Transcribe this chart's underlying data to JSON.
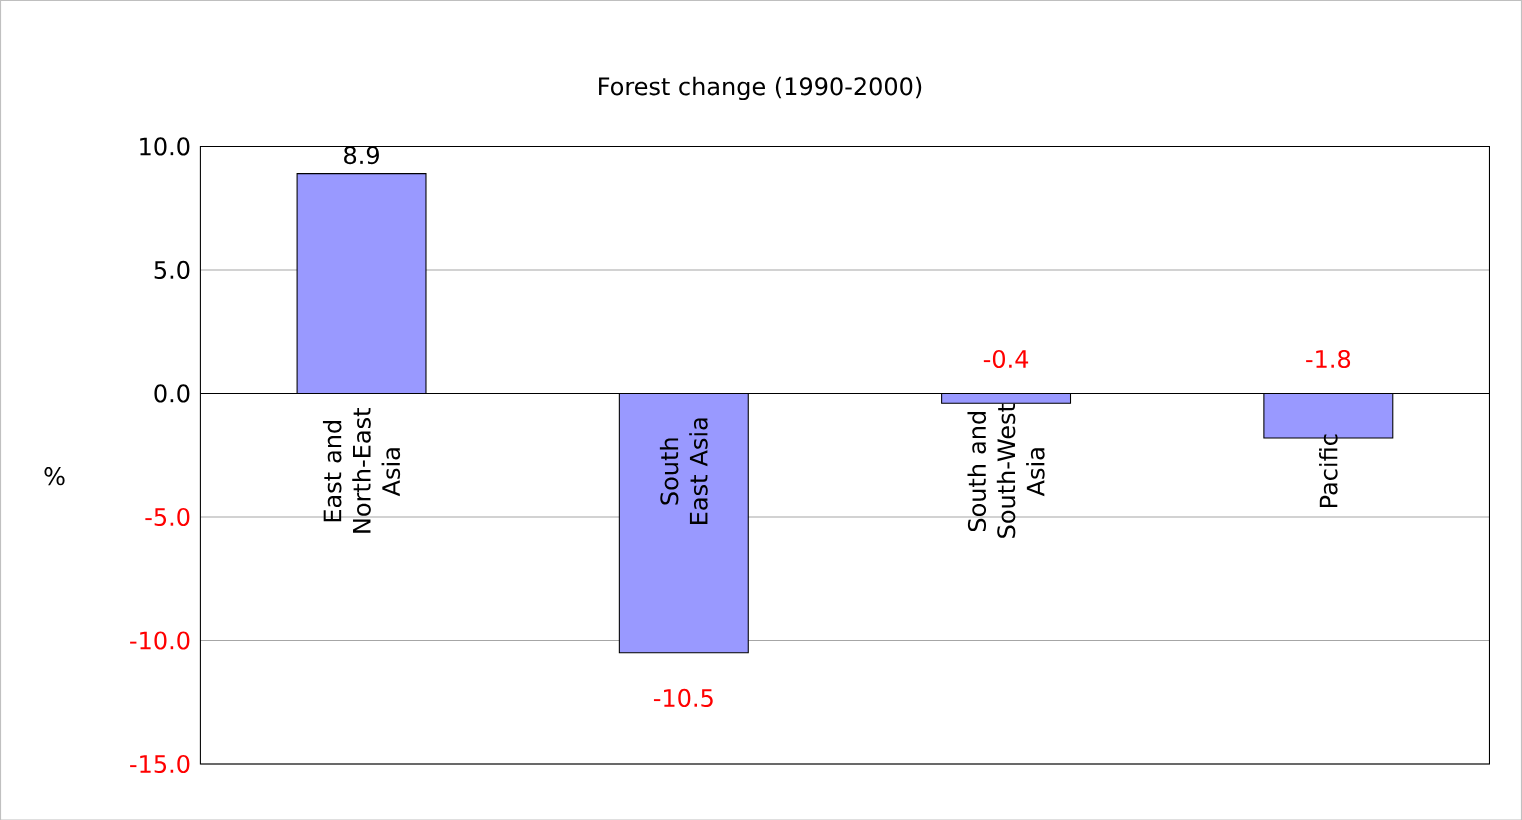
{
  "chart_data": {
    "type": "bar",
    "title": "Forest change (1990-2000)",
    "ylabel": "%",
    "categories": [
      "East and North-East Asia",
      "South East Asia",
      "South and South-West Asia",
      "Pacific"
    ],
    "values": [
      8.9,
      -10.5,
      -0.4,
      -1.8
    ],
    "color": "#9999ff",
    "ylim": [
      -15,
      10
    ],
    "yticks": [
      {
        "value": -15,
        "label": "-15.0"
      },
      {
        "value": -10,
        "label": "-10.0"
      },
      {
        "value": -5,
        "label": "-5.0"
      },
      {
        "value": 0,
        "label": "0.0"
      },
      {
        "value": 5,
        "label": "5.0"
      },
      {
        "value": 10,
        "label": "10.0"
      }
    ],
    "grid": "y",
    "data_labels": true
  }
}
